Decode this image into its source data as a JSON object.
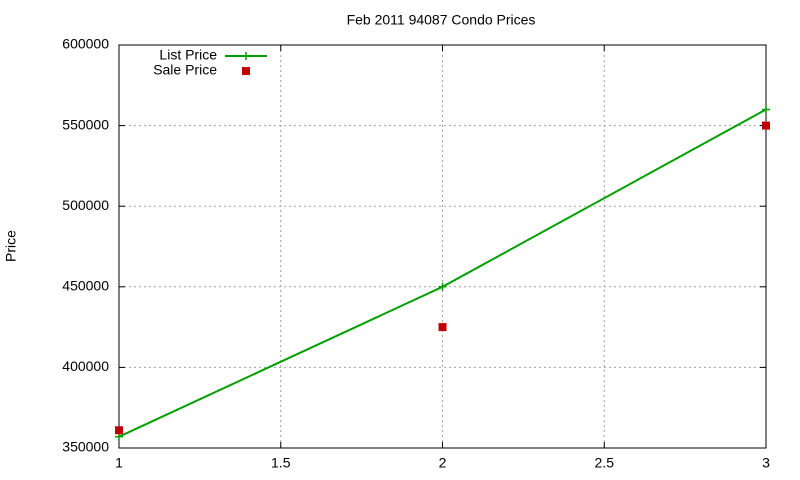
{
  "chart_data": {
    "type": "line",
    "title": "Feb 2011 94087 Condo Prices",
    "y_label": "Price",
    "x": [
      1,
      2,
      3
    ],
    "series": [
      {
        "name": "List Price",
        "color": "#00a000",
        "mode": "linespoints",
        "values": [
          357000,
          450000,
          560000
        ]
      },
      {
        "name": "Sale Price",
        "color": "#c00000",
        "mode": "points",
        "values": [
          361000,
          425000,
          550000
        ]
      }
    ],
    "xlim": [
      1,
      3
    ],
    "xticks": [
      1,
      1.5,
      2,
      2.5,
      3
    ],
    "ylim": [
      350000,
      600000
    ],
    "yticks": [
      350000,
      400000,
      450000,
      500000,
      550000,
      600000
    ],
    "grid": true,
    "legend": "top-left"
  }
}
